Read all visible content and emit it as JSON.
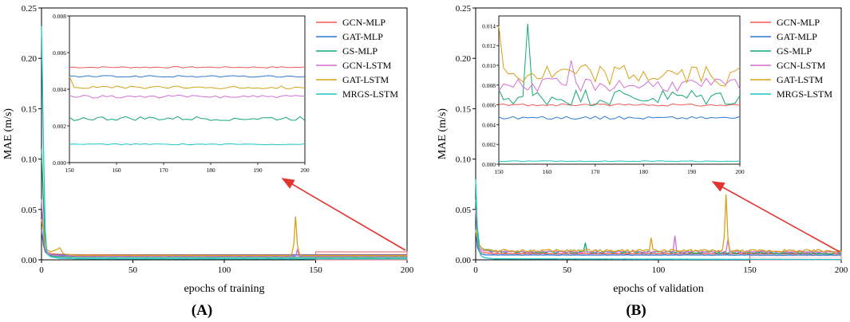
{
  "chart_data": [
    {
      "type": "line",
      "panel_label_left": "(",
      "panel_letter": "A",
      "panel_label_right": ")",
      "title": "",
      "xlabel": "epochs of training",
      "ylabel": "MAE (m/s)",
      "xlim": [
        0,
        200
      ],
      "ylim": [
        0,
        0.25
      ],
      "xticks": [
        0,
        50,
        100,
        150,
        200
      ],
      "yticks": [
        0.0,
        0.05,
        0.1,
        0.15,
        0.2,
        0.25
      ],
      "legend_location": "inset-right",
      "series": [
        {
          "name": "GCN-MLP",
          "color": "#f15a5a",
          "main_x": [
            0,
            1,
            2,
            3,
            5,
            10,
            20,
            200
          ],
          "main_y": [
            0.03,
            0.02,
            0.01,
            0.008,
            0.006,
            0.0055,
            0.005,
            0.005
          ],
          "inset_level": 0.0052,
          "inset_noise": 4e-05
        },
        {
          "name": "GAT-MLP",
          "color": "#2f78d1",
          "main_x": [
            0,
            1,
            2,
            3,
            5,
            10,
            20,
            200
          ],
          "main_y": [
            0.03,
            0.015,
            0.008,
            0.006,
            0.005,
            0.0047,
            0.0047,
            0.0047
          ],
          "inset_level": 0.0047,
          "inset_noise": 5e-05
        },
        {
          "name": "GS-MLP",
          "color": "#13a86e",
          "main_x": [
            0,
            1,
            2,
            3,
            5,
            10,
            20,
            200
          ],
          "main_y": [
            0.11,
            0.06,
            0.012,
            0.006,
            0.004,
            0.003,
            0.0025,
            0.0024
          ],
          "inset_level": 0.0024,
          "inset_noise": 0.00012
        },
        {
          "name": "GCN-LSTM",
          "color": "#d46fd6",
          "main_x": [
            0,
            1,
            2,
            3,
            5,
            10,
            20,
            200
          ],
          "main_y": [
            0.06,
            0.03,
            0.01,
            0.006,
            0.005,
            0.004,
            0.0035,
            0.0035
          ],
          "inset_level": 0.0036,
          "inset_noise": 8e-05
        },
        {
          "name": "GAT-LSTM",
          "color": "#d6a21a",
          "main_x": [
            0,
            1,
            2,
            3,
            5,
            8,
            10,
            12,
            15,
            20,
            200
          ],
          "main_y": [
            0.04,
            0.03,
            0.012,
            0.01,
            0.008,
            0.01,
            0.012,
            0.006,
            0.005,
            0.0045,
            0.0042
          ],
          "inset_level": 0.0041,
          "inset_noise": 8e-05
        },
        {
          "name": "MRGS-LSTM",
          "color": "#1ec4c8",
          "main_x": [
            0,
            1,
            2,
            3,
            5,
            10,
            20,
            200
          ],
          "main_y": [
            0.232,
            0.12,
            0.03,
            0.006,
            0.003,
            0.0015,
            0.001,
            0.001
          ],
          "inset_level": 0.001,
          "inset_noise": 3e-05
        }
      ],
      "spikes": [
        {
          "series": "GAT-LSTM",
          "x": 139,
          "y": 0.043
        },
        {
          "series": "GCN-LSTM",
          "x": 140,
          "y": 0.01
        }
      ],
      "inset": {
        "xlim": [
          150,
          200
        ],
        "ylim": [
          0.0,
          0.008
        ],
        "xticks": [
          150,
          160,
          170,
          180,
          190,
          200
        ],
        "yticks": [
          "0.000",
          "0.002",
          "0.004",
          "0.006",
          "0.008"
        ]
      }
    },
    {
      "type": "line",
      "panel_label_left": "(",
      "panel_letter": "B",
      "panel_label_right": ")",
      "title": "",
      "xlabel": "epochs of validation",
      "ylabel": "MAE (m/s)",
      "xlim": [
        0,
        200
      ],
      "ylim": [
        0,
        0.25
      ],
      "xticks": [
        0,
        50,
        100,
        150,
        200
      ],
      "yticks": [
        0.0,
        0.05,
        0.1,
        0.15,
        0.2,
        0.25
      ],
      "legend_location": "inset-right",
      "series": [
        {
          "name": "GCN-MLP",
          "color": "#f15a5a",
          "main_x": [
            0,
            1,
            2,
            3,
            5,
            10,
            200
          ],
          "main_y": [
            0.03,
            0.015,
            0.01,
            0.008,
            0.007,
            0.0062,
            0.006
          ],
          "inset_level": 0.006,
          "inset_noise": 0.00012
        },
        {
          "name": "GAT-MLP",
          "color": "#2f78d1",
          "main_x": [
            0,
            1,
            2,
            3,
            5,
            10,
            200
          ],
          "main_y": [
            0.03,
            0.012,
            0.008,
            0.006,
            0.005,
            0.0048,
            0.0047
          ],
          "inset_level": 0.0047,
          "inset_noise": 0.00015
        },
        {
          "name": "GS-MLP",
          "color": "#13a86e",
          "main_x": [
            0,
            1,
            2,
            3,
            5,
            10,
            200
          ],
          "main_y": [
            0.06,
            0.03,
            0.015,
            0.012,
            0.01,
            0.008,
            0.0068
          ],
          "inset_level": 0.0068,
          "inset_noise": 0.0009
        },
        {
          "name": "GCN-LSTM",
          "color": "#d46fd6",
          "main_x": [
            0,
            1,
            2,
            3,
            5,
            10,
            200
          ],
          "main_y": [
            0.05,
            0.025,
            0.012,
            0.01,
            0.009,
            0.008,
            0.008
          ],
          "inset_level": 0.008,
          "inset_noise": 0.0007
        },
        {
          "name": "GAT-LSTM",
          "color": "#d6a21a",
          "main_x": [
            0,
            1,
            2,
            3,
            5,
            10,
            200
          ],
          "main_y": [
            0.03,
            0.02,
            0.015,
            0.012,
            0.01,
            0.009,
            0.009
          ],
          "inset_level": 0.009,
          "inset_noise": 0.0011
        },
        {
          "name": "MRGS-LSTM",
          "color": "#1ec4c8",
          "main_x": [
            0,
            1,
            2,
            3,
            5,
            10,
            200
          ],
          "main_y": [
            0.08,
            0.025,
            0.008,
            0.004,
            0.002,
            0.001,
            0.0003
          ],
          "inset_level": 0.0003,
          "inset_noise": 5e-05
        }
      ],
      "spikes": [
        {
          "series": "GAT-LSTM",
          "x": 137,
          "y": 0.065
        },
        {
          "series": "GCN-LSTM",
          "x": 138,
          "y": 0.02
        },
        {
          "series": "GAT-LSTM",
          "x": 96,
          "y": 0.022
        },
        {
          "series": "GCN-LSTM",
          "x": 109,
          "y": 0.024
        },
        {
          "series": "GS-MLP",
          "x": 60,
          "y": 0.017
        }
      ],
      "inset": {
        "xlim": [
          150,
          200
        ],
        "ylim": [
          0.0,
          0.015
        ],
        "xticks": [
          150,
          160,
          170,
          180,
          190,
          200
        ],
        "yticks": [
          "0.000",
          "0.002",
          "0.004",
          "0.006",
          "0.008",
          "0.010",
          "0.012",
          "0.014"
        ]
      }
    }
  ]
}
